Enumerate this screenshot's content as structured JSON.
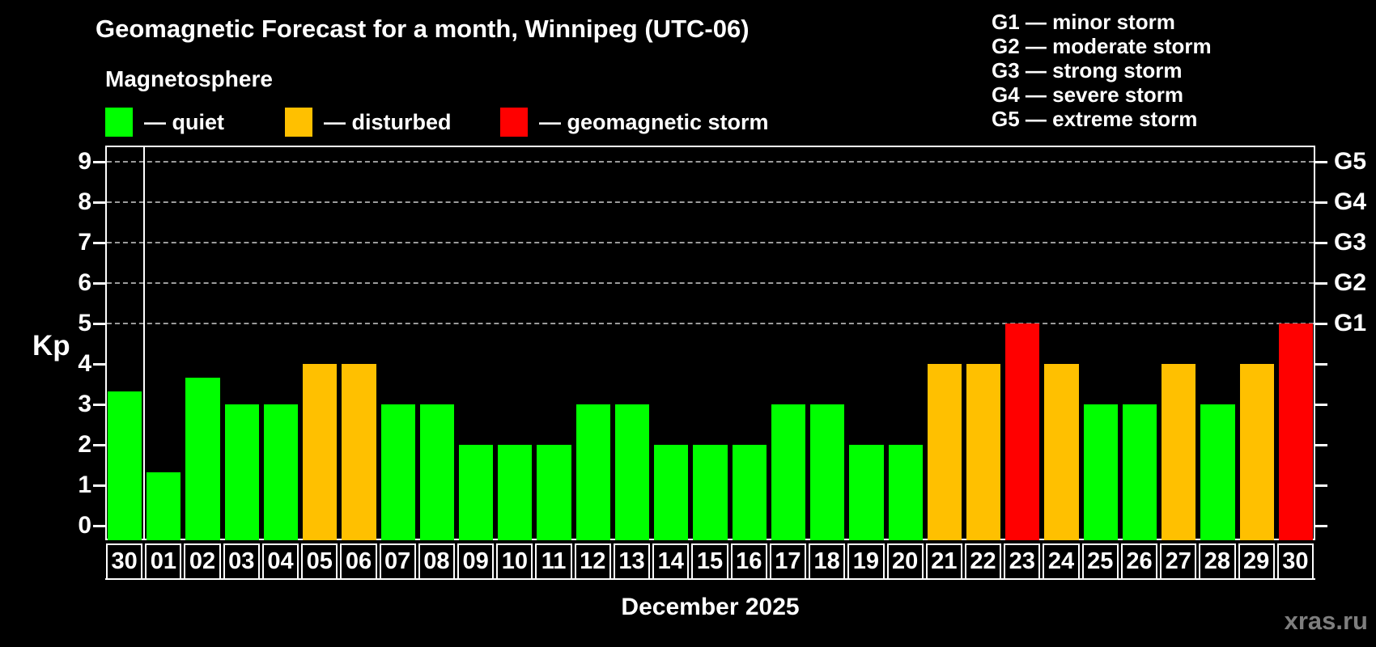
{
  "title": "Geomagnetic Forecast for a month, Winnipeg (UTC-06)",
  "subtitle": "Magnetosphere",
  "kp_axis_label": "Kp",
  "xlabel": "December 2025",
  "watermark": "xras.ru",
  "colors": {
    "quiet": "#00ff00",
    "disturbed": "#ffc000",
    "storm": "#ff0000",
    "background": "#000000",
    "text": "#ffffff",
    "grid": "#9c9c9c",
    "watermark_color": "#7e7e7e"
  },
  "legend": {
    "items": [
      {
        "status": "quiet",
        "label": "— quiet"
      },
      {
        "status": "disturbed",
        "label": "— disturbed"
      },
      {
        "status": "storm",
        "label": "— geomagnetic storm"
      }
    ]
  },
  "g_scale_legend": [
    "G1 — minor storm",
    "G2 — moderate storm",
    "G3 — strong storm",
    "G4 — severe storm",
    "G5 — extreme storm"
  ],
  "chart_data": {
    "type": "bar",
    "title": "Geomagnetic Forecast for a month, Winnipeg (UTC-06)",
    "ylabel": "Kp",
    "xlabel": "December 2025",
    "ylim": [
      0,
      9.33
    ],
    "y_ticks": [
      0,
      1,
      2,
      3,
      4,
      5,
      6,
      7,
      8,
      9
    ],
    "gridlines_kp": [
      5,
      6,
      7,
      8,
      9
    ],
    "right_axis_labels": {
      "5": "G1",
      "6": "G2",
      "7": "G3",
      "8": "G4",
      "9": "G5"
    },
    "grid": "horizontal dashed at storm levels only",
    "legend_position": "top-left",
    "categories": [
      "30",
      "01",
      "02",
      "03",
      "04",
      "05",
      "06",
      "07",
      "08",
      "09",
      "10",
      "11",
      "12",
      "13",
      "14",
      "15",
      "16",
      "17",
      "18",
      "19",
      "20",
      "21",
      "22",
      "23",
      "24",
      "25",
      "26",
      "27",
      "28",
      "29",
      "30"
    ],
    "values": [
      3.33,
      1.33,
      3.67,
      3,
      3,
      4,
      4,
      3,
      3,
      2,
      2,
      2,
      3,
      3,
      2,
      2,
      2,
      3,
      3,
      2,
      2,
      4,
      4,
      5,
      4,
      3,
      3,
      4,
      3,
      4,
      5
    ],
    "statuses": [
      "quiet",
      "quiet",
      "quiet",
      "quiet",
      "quiet",
      "disturbed",
      "disturbed",
      "quiet",
      "quiet",
      "quiet",
      "quiet",
      "quiet",
      "quiet",
      "quiet",
      "quiet",
      "quiet",
      "quiet",
      "quiet",
      "quiet",
      "quiet",
      "quiet",
      "disturbed",
      "disturbed",
      "storm",
      "disturbed",
      "quiet",
      "quiet",
      "disturbed",
      "quiet",
      "disturbed",
      "storm"
    ],
    "month_separator_after_index": 0
  }
}
